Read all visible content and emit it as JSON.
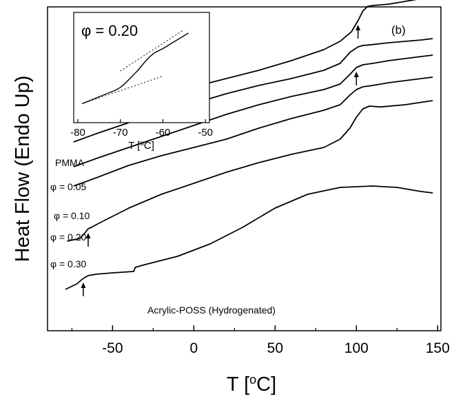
{
  "chart_data": [
    {
      "type": "line",
      "panel_label": "(b)",
      "xlabel_prefix": "T [",
      "xlabel_sup": "o",
      "xlabel_suffix": "C]",
      "ylabel": "Heat Flow (Endo Up)",
      "xlim": [
        -90,
        152
      ],
      "y_ticks_visible": false,
      "xticks": [
        -50,
        0,
        50,
        100,
        150
      ],
      "xtick_labels": [
        "-50",
        "0",
        "50",
        "100",
        "150"
      ],
      "grid": false,
      "series": [
        {
          "name": "PMMA",
          "x": [
            -74,
            -60,
            -40,
            -20,
            0,
            20,
            40,
            60,
            80,
            90,
            97,
            101,
            104,
            107,
            110,
            120,
            130,
            140
          ],
          "y": [
            0.73,
            0.76,
            0.8,
            0.83,
            0.86,
            0.89,
            0.92,
            0.955,
            0.995,
            1.025,
            1.06,
            1.1,
            1.135,
            1.152,
            1.155,
            1.16,
            1.17,
            1.18
          ]
        },
        {
          "name": "φ = 0.05",
          "x": [
            -74,
            -60,
            -40,
            -20,
            0,
            20,
            40,
            60,
            80,
            90,
            96,
            101,
            104,
            108,
            120,
            140,
            147
          ],
          "y": [
            0.66,
            0.69,
            0.73,
            0.765,
            0.8,
            0.835,
            0.865,
            0.89,
            0.92,
            0.945,
            0.985,
            1.005,
            1.01,
            1.012,
            1.02,
            1.03,
            1.035
          ]
        },
        {
          "name": "φ = 0.10",
          "x": [
            -74,
            -60,
            -40,
            -20,
            0,
            20,
            40,
            60,
            80,
            90,
            96,
            100,
            104,
            110,
            120,
            140,
            147
          ],
          "y": [
            0.57,
            0.6,
            0.64,
            0.68,
            0.72,
            0.76,
            0.795,
            0.825,
            0.85,
            0.87,
            0.905,
            0.93,
            0.94,
            0.945,
            0.955,
            0.97,
            0.975
          ]
        },
        {
          "name": "φ = 0.20",
          "x": [
            -74,
            -60,
            -40,
            -20,
            0,
            20,
            40,
            60,
            80,
            90,
            96,
            100,
            104,
            110,
            120,
            140,
            147
          ],
          "y": [
            0.5,
            0.53,
            0.575,
            0.61,
            0.64,
            0.67,
            0.71,
            0.745,
            0.775,
            0.795,
            0.83,
            0.85,
            0.86,
            0.865,
            0.875,
            0.89,
            0.895
          ]
        },
        {
          "name": "φ = 0.30",
          "x": [
            -78,
            -70,
            -67,
            -65,
            -63,
            -60,
            -40,
            -20,
            0,
            20,
            40,
            60,
            80,
            90,
            96,
            100,
            104,
            108,
            115,
            130,
            147
          ],
          "y": [
            0.3,
            0.31,
            0.33,
            0.345,
            0.35,
            0.36,
            0.42,
            0.47,
            0.51,
            0.55,
            0.585,
            0.615,
            0.64,
            0.67,
            0.71,
            0.75,
            0.78,
            0.79,
            0.787,
            0.795,
            0.81
          ]
        },
        {
          "name": "Acrylic-POSS (Hydrogenated)",
          "x": [
            -79,
            -72,
            -68,
            -65,
            -60,
            -50,
            -37,
            -36,
            -30,
            -10,
            10,
            30,
            50,
            70,
            90,
            110,
            125,
            140,
            147
          ],
          "y": [
            0.125,
            0.145,
            0.165,
            0.175,
            0.18,
            0.185,
            0.19,
            0.205,
            0.215,
            0.245,
            0.29,
            0.35,
            0.42,
            0.47,
            0.495,
            0.5,
            0.495,
            0.48,
            0.475
          ]
        }
      ],
      "arrows_x": [
        101,
        100,
        -65,
        -68
      ],
      "labels": [
        "PMMA",
        "φ = 0.05",
        "φ = 0.10",
        "φ = 0.20",
        "φ = 0.30",
        "Acrylic-POSS (Hydrogenated)"
      ]
    },
    {
      "type": "line",
      "title": "φ = 0.20",
      "xlabel_prefix": "T [",
      "xlabel_sup": "o",
      "xlabel_suffix": "C]",
      "xlim": [
        -80,
        -50
      ],
      "xticks": [
        -80,
        -70,
        -60,
        -50
      ],
      "xtick_labels": [
        "-80",
        "-70",
        "-60",
        "-50"
      ],
      "y_ticks_visible": false,
      "series": [
        {
          "name": "",
          "x": [
            -79,
            -76,
            -73,
            -71,
            -70,
            -69,
            -68,
            -67,
            -66,
            -65,
            -64,
            -63,
            -62,
            -60,
            -58,
            -56,
            -54
          ],
          "y": [
            0.06,
            0.12,
            0.18,
            0.22,
            0.25,
            0.29,
            0.34,
            0.39,
            0.44,
            0.5,
            0.56,
            0.61,
            0.65,
            0.7,
            0.76,
            0.82,
            0.88
          ]
        }
      ],
      "tangent_lines": [
        {
          "x": [
            -79,
            -60
          ],
          "y": [
            0.06,
            0.38
          ]
        },
        {
          "x": [
            -70,
            -55
          ],
          "y": [
            0.44,
            0.92
          ]
        }
      ]
    }
  ]
}
